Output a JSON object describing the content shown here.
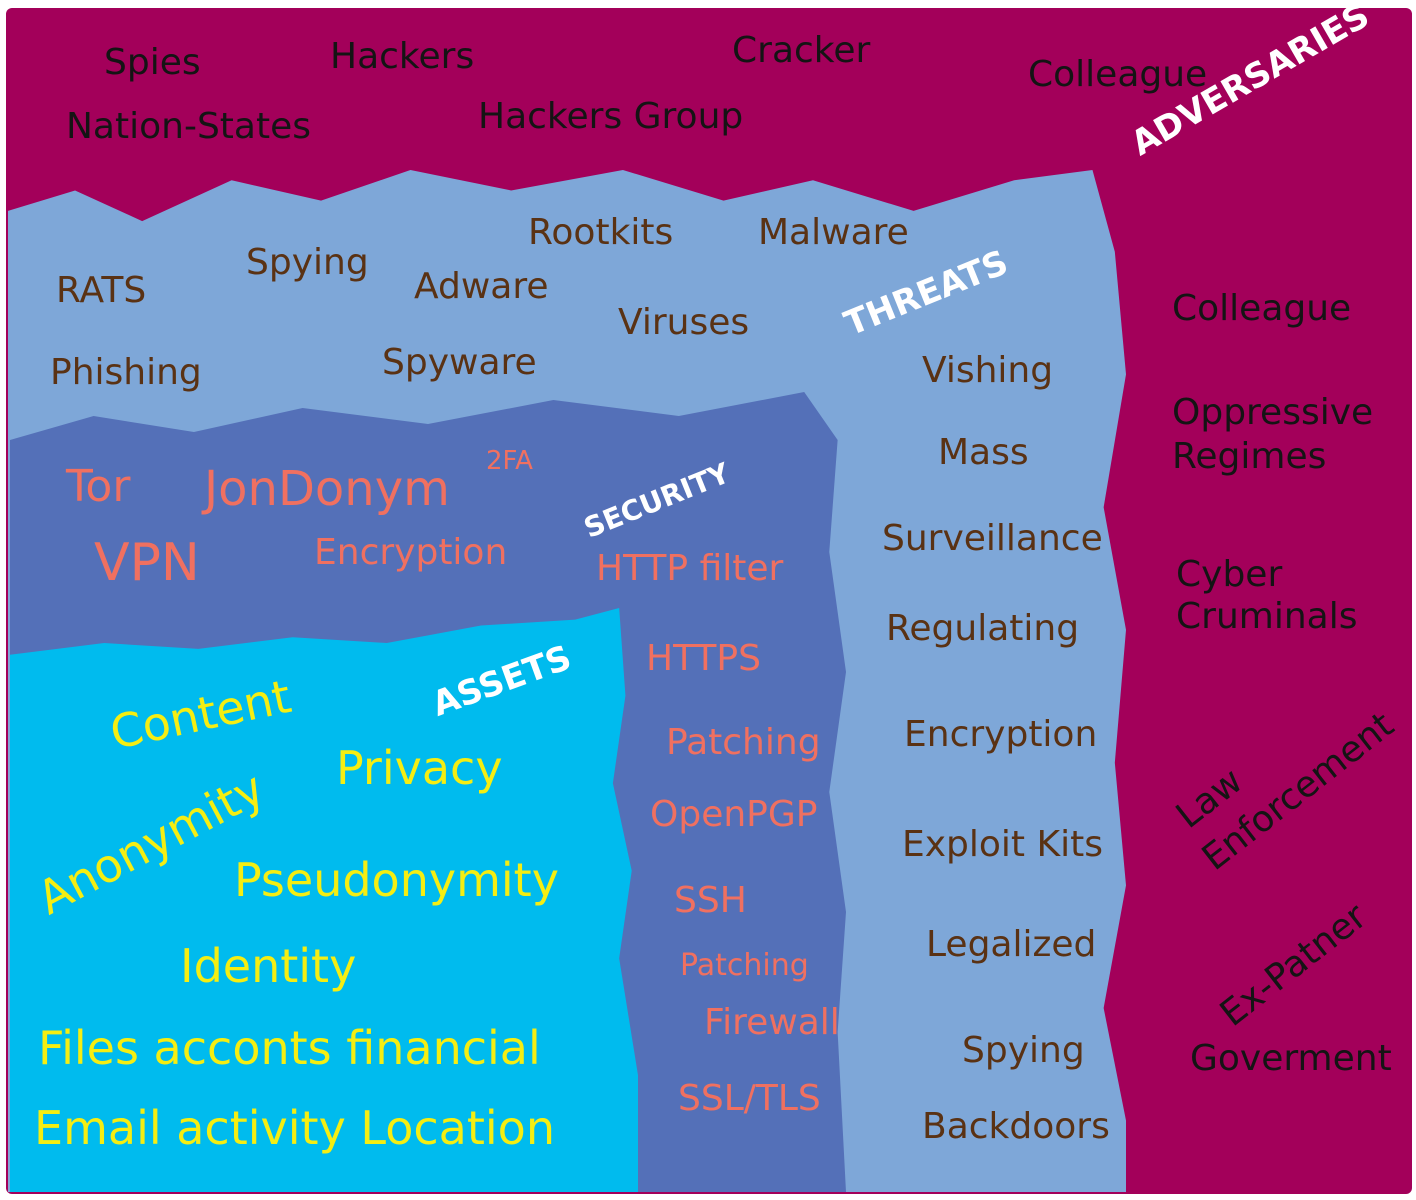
{
  "colors": {
    "adversaries_fill": "#a3005a",
    "threats_fill": "#7ea7d8",
    "security_fill": "#5470b8",
    "assets_fill": "#00bbee",
    "title_text": "#ffffff",
    "adversary_text": "#141414",
    "threat_text": "#5a3214",
    "security_text": "#f07060",
    "asset_text": "#f5ee12"
  },
  "adversaries": {
    "title": "ADVERSARIES",
    "items": [
      "Spies",
      "Hackers",
      "Cracker",
      "Colleague",
      "Nation-States",
      "Hackers Group",
      "Colleague",
      "Oppressive",
      "Regimes",
      "Cyber",
      "Cruminals",
      "Law",
      "Enforcement",
      "Ex-Patner",
      "Goverment"
    ]
  },
  "threats": {
    "title": "THREATS",
    "items": [
      "Rootkits",
      "Malware",
      "RATS",
      "Spying",
      "Adware",
      "Viruses",
      "Phishing",
      "Spyware",
      "Vishing",
      "Mass",
      "Surveillance",
      "Regulating",
      "Encryption",
      "Exploit Kits",
      "Legalized",
      "Spying",
      "Backdoors"
    ]
  },
  "security": {
    "title": "SECURITY",
    "items": [
      "Tor",
      "JonDonym",
      "2FA",
      "VPN",
      "Encryption",
      "HTTP filter",
      "HTTPS",
      "Patching",
      "OpenPGP",
      "SSH",
      "Patching",
      "Firewall",
      "SSL/TLS"
    ]
  },
  "assets": {
    "title": "ASSETS",
    "items": [
      "Content",
      "Privacy",
      "Anonymity",
      "Pseudonymity",
      "Identity",
      "Files acconts financial",
      "Email activity Location"
    ]
  }
}
